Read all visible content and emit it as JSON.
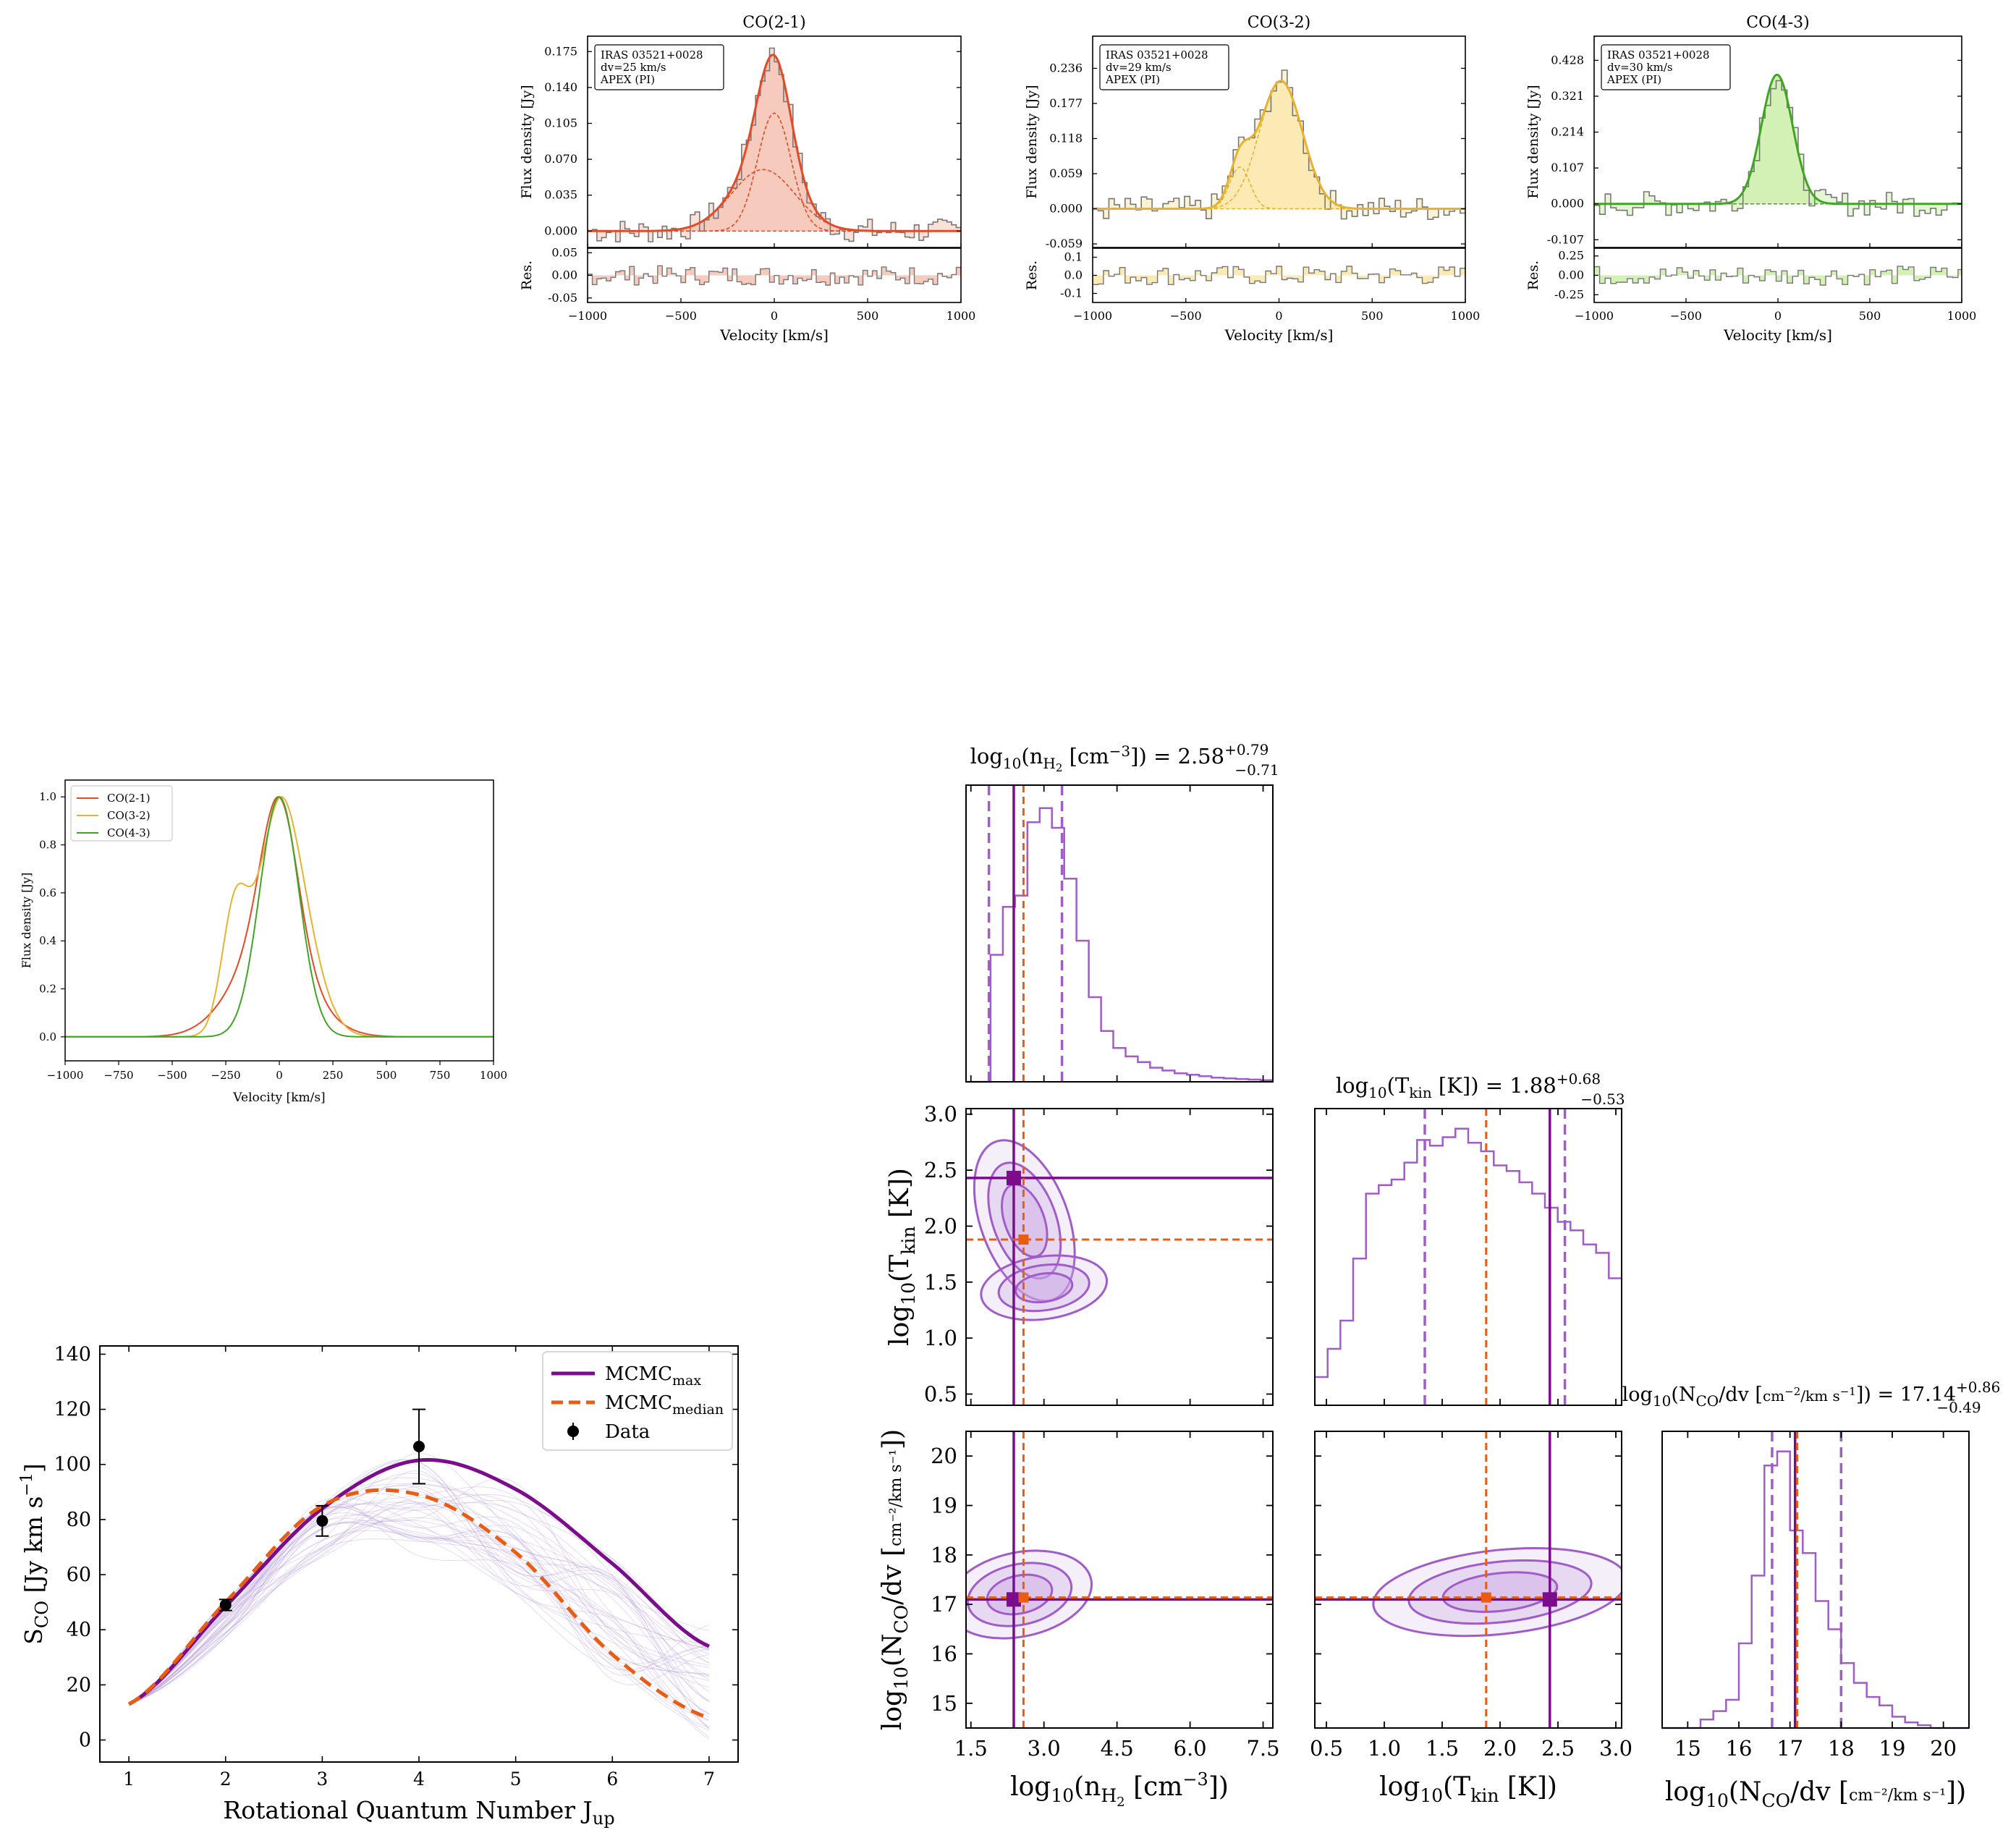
{
  "colors": {
    "co21": "#e34a26",
    "co21_fill": "#f6cbbd",
    "co32": "#e8b22e",
    "co32_fill": "#fbeab3",
    "co43": "#3fa623",
    "co43_fill": "#d3f0b5",
    "max": "#7b0c8c",
    "median": "#e85d12",
    "corner_contour": "#a05cc8",
    "corner_fill": "#c9a5e2",
    "data": "#000000"
  },
  "spectra": [
    {
      "title": "CO(2-1)",
      "color_key": "co21",
      "legend": [
        "IRAS 03521+0028",
        "dv=25 km/s",
        "APEX (PI)"
      ],
      "ylabel": "Flux density [Jy]",
      "res_label": "Res.",
      "xlabel": "Velocity [km/s]",
      "xlim": [
        -1000,
        1000
      ],
      "ylim": [
        -0.016,
        0.19
      ],
      "yticks": [
        "0.000",
        "0.035",
        "0.070",
        "0.105",
        "0.140",
        "0.175"
      ],
      "ytick_vals": [
        0,
        0.035,
        0.07,
        0.105,
        0.14,
        0.175
      ],
      "res_ylim": [
        -0.06,
        0.06
      ],
      "res_ticks": [
        "0.05",
        "0.00",
        "-0.05"
      ],
      "res_tick_vals": [
        0.05,
        0,
        -0.05
      ],
      "xticks": [
        "-1000",
        "-500",
        "0",
        "500",
        "1000"
      ],
      "components": [
        {
          "amp": 0.115,
          "mu": 0,
          "sigma": 90
        },
        {
          "amp": 0.06,
          "mu": -60,
          "sigma": 170
        }
      ],
      "channel_width": 25
    },
    {
      "title": "CO(3-2)",
      "color_key": "co32",
      "legend": [
        "IRAS 03521+0028",
        "dv=29 km/s",
        "APEX (PI)"
      ],
      "ylabel": "Flux density [Jy]",
      "res_label": "Res.",
      "xlabel": "Velocity [km/s]",
      "xlim": [
        -1000,
        1000
      ],
      "ylim": [
        -0.065,
        0.29
      ],
      "yticks": [
        "-0.059",
        "0.000",
        "0.059",
        "0.118",
        "0.177",
        "0.236"
      ],
      "ytick_vals": [
        -0.059,
        0,
        0.059,
        0.118,
        0.177,
        0.236
      ],
      "res_ylim": [
        -0.15,
        0.15
      ],
      "res_ticks": [
        "0.1",
        "0.0",
        "-0.1"
      ],
      "res_tick_vals": [
        0.1,
        0,
        -0.1
      ],
      "xticks": [
        "-1000",
        "-500",
        "0",
        "500",
        "1000"
      ],
      "components": [
        {
          "amp": 0.215,
          "mu": 10,
          "sigma": 115
        },
        {
          "amp": 0.07,
          "mu": -210,
          "sigma": 55
        }
      ],
      "channel_width": 29
    },
    {
      "title": "CO(4-3)",
      "color_key": "co43",
      "legend": [
        "IRAS 03521+0028",
        "dv=30 km/s",
        "APEX (PI)"
      ],
      "ylabel": "Flux density [Jy]",
      "res_label": "Res.",
      "xlabel": "Velocity [km/s]",
      "xlim": [
        -1000,
        1000
      ],
      "ylim": [
        -0.13,
        0.5
      ],
      "yticks": [
        "-0.107",
        "0.000",
        "0.107",
        "0.214",
        "0.321",
        "0.428"
      ],
      "ytick_vals": [
        -0.107,
        0,
        0.107,
        0.214,
        0.321,
        0.428
      ],
      "res_ylim": [
        -0.35,
        0.35
      ],
      "res_ticks": [
        "0.25",
        "0.00",
        "-0.25"
      ],
      "res_tick_vals": [
        0.25,
        0,
        -0.25
      ],
      "xticks": [
        "-1000",
        "-500",
        "0",
        "500",
        "1000"
      ],
      "components": [
        {
          "amp": 0.385,
          "mu": -5,
          "sigma": 85
        }
      ],
      "channel_width": 30
    }
  ],
  "normalized": {
    "type": "line",
    "ylabel": "Flux density [Jy]",
    "xlabel": "Velocity [km/s]",
    "xlim": [
      -1000,
      1000
    ],
    "ylim": [
      -0.1,
      1.07
    ],
    "xticks": [
      "-1000",
      "-750",
      "-500",
      "-250",
      "0",
      "250",
      "500",
      "750",
      "1000"
    ],
    "yticks": [
      "0.0",
      "0.2",
      "0.4",
      "0.6",
      "0.8",
      "1.0"
    ],
    "series": [
      {
        "name": "CO(2-1)",
        "color_key": "co21"
      },
      {
        "name": "CO(3-2)",
        "color_key": "co32"
      },
      {
        "name": "CO(4-3)",
        "color_key": "co43"
      }
    ]
  },
  "chart_data": [
    {
      "type": "line",
      "title": "CO(2-1)",
      "xlabel": "Velocity [km/s]",
      "ylabel": "Flux density [Jy]",
      "x": [
        -1000,
        -500,
        -250,
        -100,
        0,
        100,
        250,
        500,
        1000
      ],
      "series": [
        {
          "name": "CO(2-1)",
          "values": [
            0,
            0,
            0.02,
            0.12,
            0.175,
            0.11,
            0.02,
            0,
            0
          ]
        }
      ]
    },
    {
      "type": "line",
      "title": "CO(3-2)",
      "xlabel": "Velocity [km/s]",
      "ylabel": "Flux density [Jy]",
      "x": [
        -1000,
        -500,
        -250,
        -100,
        0,
        100,
        250,
        500,
        1000
      ],
      "series": [
        {
          "name": "CO(3-2)",
          "values": [
            0,
            0,
            0.08,
            0.15,
            0.215,
            0.17,
            0.03,
            0,
            0
          ]
        }
      ]
    },
    {
      "type": "line",
      "title": "CO(4-3)",
      "xlabel": "Velocity [km/s]",
      "ylabel": "Flux density [Jy]",
      "x": [
        -1000,
        -500,
        -250,
        -100,
        0,
        100,
        250,
        500,
        1000
      ],
      "series": [
        {
          "name": "CO(4-3)",
          "values": [
            0,
            0,
            0.005,
            0.19,
            0.385,
            0.21,
            0.005,
            0,
            0
          ]
        }
      ]
    },
    {
      "type": "line",
      "xlabel": "Rotational Quantum Number J_up",
      "ylabel": "S_CO [Jy km s^-1]",
      "xlim": [
        0.7,
        7.3
      ],
      "ylim": [
        -8,
        143
      ],
      "x": [
        1,
        2,
        3,
        4,
        5,
        6,
        7
      ],
      "series": [
        {
          "name": "MCMC_max",
          "values": [
            13,
            48.5,
            84,
            101.5,
            91,
            64,
            34
          ]
        },
        {
          "name": "MCMC_median",
          "values": [
            13,
            50,
            85,
            89,
            68,
            31,
            8
          ]
        }
      ],
      "data_points": [
        {
          "x": 2,
          "y": 49,
          "err": 2
        },
        {
          "x": 3,
          "y": 79.5,
          "err": 5.5
        },
        {
          "x": 4,
          "y": 106.5,
          "err": 13.5
        }
      ]
    }
  ],
  "sled": {
    "xlabel_main": "Rotational Quantum Number J",
    "xlabel_sub": "up",
    "ylabel_main": "S",
    "ylabel_sub": "CO",
    "ylabel_rest": " [Jy km s",
    "ylabel_sup": "−1",
    "ylabel_end": "]",
    "xlim": [
      0.7,
      7.3
    ],
    "ylim": [
      -8,
      143
    ],
    "xticks": [
      "1",
      "2",
      "3",
      "4",
      "5",
      "6",
      "7"
    ],
    "yticks": [
      "0",
      "20",
      "40",
      "60",
      "80",
      "100",
      "120",
      "140"
    ],
    "legend": [
      {
        "main": "MCMC",
        "sub": "max",
        "style": "solid",
        "color_key": "max"
      },
      {
        "main": "MCMC",
        "sub": "median",
        "style": "dashed",
        "color_key": "median"
      },
      {
        "main": "Data",
        "sub": "",
        "style": "point",
        "color_key": "data"
      }
    ]
  },
  "corner": {
    "titles": {
      "nh2": {
        "pre": "log",
        "sub10": "10",
        "mid": "(n",
        "subvar": "H",
        "subsub": "2",
        "post": " [cm",
        "sup": "−3",
        "end": "]) = 2.58",
        "up": "+0.79",
        "lo": "−0.71"
      },
      "tkin": {
        "pre": "log",
        "sub10": "10",
        "mid": "(T",
        "subvar": "kin",
        "post": " [K]) = 1.88",
        "up": "+0.68",
        "lo": "−0.53"
      },
      "nco": {
        "pre": "log",
        "sub10": "10",
        "mid": "(N",
        "subvar": "CO",
        "frac_top": "cm",
        "frac_top_sup": "−2",
        "frac_bot": "km s",
        "frac_bot_sup": "−1",
        "post": "/dv",
        "end": ") = 17.14",
        "up": "+0.86",
        "lo": "−0.49"
      }
    },
    "axes": {
      "nh2": {
        "label": "log10(nH2 [cm−3])",
        "lim": [
          1.4,
          7.7
        ],
        "ticks": [
          "1.5",
          "3.0",
          "4.5",
          "6.0",
          "7.5"
        ],
        "tick_vals": [
          1.5,
          3.0,
          4.5,
          6.0,
          7.5
        ],
        "max": 2.38,
        "median": 2.58,
        "lo": 1.87,
        "hi": 3.37
      },
      "tkin": {
        "label": "log10(Tkin [K])",
        "lim": [
          0.4,
          3.05
        ],
        "ticks": [
          "0.5",
          "1.0",
          "1.5",
          "2.0",
          "2.5",
          "3.0"
        ],
        "tick_vals": [
          0.5,
          1.0,
          1.5,
          2.0,
          2.5,
          3.0
        ],
        "max": 2.43,
        "median": 1.88,
        "lo": 1.35,
        "hi": 2.56
      },
      "nco": {
        "label": "log10(NCO/dv [cm−2 / km s−1])",
        "lim": [
          14.5,
          20.5
        ],
        "ticks": [
          "15",
          "16",
          "17",
          "18",
          "19",
          "20"
        ],
        "tick_vals": [
          15,
          16,
          17,
          18,
          19,
          20
        ],
        "max": 17.1,
        "median": 17.14,
        "lo": 16.65,
        "hi": 18.0
      }
    },
    "y_ticks_tkin": [
      "3.0",
      "2.5",
      "2.0",
      "1.5",
      "1.0",
      "0.5"
    ],
    "y_ticks_nco": [
      "20",
      "19",
      "18",
      "17",
      "16",
      "15"
    ],
    "hist_nh2": [
      0,
      0,
      0.45,
      0.62,
      0.66,
      0.92,
      0.97,
      0.9,
      0.72,
      0.5,
      0.3,
      0.18,
      0.12,
      0.09,
      0.07,
      0.05,
      0.04,
      0.03,
      0.025,
      0.02,
      0.015,
      0.012,
      0.01,
      0.008,
      0.006
    ],
    "hist_tkin": [
      0.1,
      0.2,
      0.3,
      0.52,
      0.75,
      0.78,
      0.8,
      0.86,
      0.94,
      0.92,
      0.95,
      0.98,
      0.93,
      0.9,
      0.85,
      0.83,
      0.79,
      0.75,
      0.7,
      0.65,
      0.62,
      0.57,
      0.54,
      0.45
    ],
    "hist_nco": [
      0,
      0,
      0,
      0.03,
      0.06,
      0.1,
      0.3,
      0.54,
      0.93,
      0.98,
      0.7,
      0.62,
      0.45,
      0.35,
      0.23,
      0.16,
      0.11,
      0.08,
      0.04,
      0.02,
      0.01,
      0,
      0,
      0
    ]
  }
}
